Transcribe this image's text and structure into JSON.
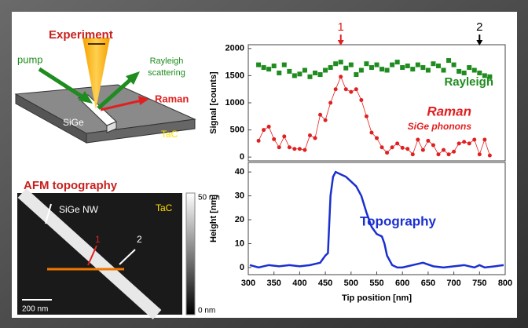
{
  "experiment": {
    "title": "Experiment",
    "pump": "pump",
    "rayleigh": [
      "Rayleigh",
      "scattering"
    ],
    "raman": "Raman",
    "sige": "SiGe",
    "tac": "TaC"
  },
  "afm": {
    "title": "AFM topography",
    "wire": "SiGe NW",
    "tac": "TaC",
    "point1": "1",
    "point2": "2",
    "scale_bar": "200 nm",
    "colorbar_max": "50 nm",
    "colorbar_min": "0 nm"
  },
  "chart_data": [
    {
      "type": "line",
      "ylabel": "Signal [counts]",
      "annotation": "SiGe phonons",
      "x": [
        320,
        330,
        340,
        350,
        360,
        370,
        380,
        390,
        400,
        410,
        420,
        430,
        440,
        450,
        460,
        470,
        480,
        490,
        500,
        510,
        520,
        530,
        540,
        550,
        560,
        570,
        580,
        590,
        600,
        610,
        620,
        630,
        640,
        650,
        660,
        670,
        680,
        690,
        700,
        710,
        720,
        730,
        740,
        750,
        760,
        770
      ],
      "series": [
        {
          "name": "Rayleigh",
          "color": "#1e8c1e",
          "marker": "square",
          "line": false,
          "values": [
            1700,
            1650,
            1620,
            1680,
            1550,
            1700,
            1580,
            1500,
            1530,
            1600,
            1480,
            1550,
            1520,
            1600,
            1650,
            1720,
            1750,
            1640,
            1700,
            1520,
            1600,
            1720,
            1650,
            1700,
            1620,
            1600,
            1700,
            1750,
            1650,
            1680,
            1620,
            1700,
            1650,
            1600,
            1720,
            1680,
            1600,
            1780,
            1700,
            1580,
            1550,
            1650,
            1600,
            1550,
            1500,
            1480
          ]
        },
        {
          "name": "Raman",
          "color": "#e02020",
          "marker": "circle",
          "line": true,
          "values": [
            300,
            500,
            560,
            330,
            180,
            380,
            180,
            150,
            150,
            130,
            400,
            350,
            780,
            680,
            1000,
            1250,
            1480,
            1250,
            1200,
            1250,
            1050,
            750,
            450,
            350,
            180,
            80,
            180,
            250,
            170,
            150,
            50,
            320,
            130,
            300,
            220,
            50,
            130,
            50,
            100,
            250,
            280,
            250,
            320,
            50,
            320,
            30
          ]
        }
      ],
      "markers": [
        {
          "label": "1",
          "x": 480,
          "color": "#e02020"
        },
        {
          "label": "2",
          "x": 750,
          "color": "#000000"
        }
      ],
      "xlim": [
        300,
        800
      ],
      "ylim": [
        -70,
        2070
      ],
      "yticks": [
        0,
        500,
        1000,
        1500,
        2000
      ]
    },
    {
      "type": "line",
      "ylabel": "Height [nm]",
      "xlabel": "Tip position [nm]",
      "x": [
        303,
        320,
        340,
        360,
        380,
        400,
        420,
        440,
        450,
        455,
        460,
        465,
        470,
        480,
        490,
        500,
        510,
        520,
        530,
        540,
        550,
        560,
        565,
        570,
        580,
        590,
        600,
        620,
        640,
        660,
        680,
        700,
        720,
        740,
        750,
        760,
        780,
        797
      ],
      "series": [
        {
          "name": "Topography",
          "color": "#1a2fd0",
          "marker": "none",
          "line": true,
          "values": [
            1,
            0,
            1,
            0.5,
            1,
            0.5,
            1,
            2,
            5,
            6,
            30,
            38,
            40,
            39,
            38,
            36,
            34,
            30,
            23,
            17,
            14,
            13,
            10,
            5,
            1,
            0,
            0,
            1,
            2,
            0.5,
            0,
            0.5,
            1,
            0,
            1,
            0,
            0.5,
            1
          ]
        }
      ],
      "xlim": [
        300,
        800
      ],
      "ylim": [
        -3,
        44
      ],
      "yticks": [
        0,
        10,
        20,
        30,
        40
      ],
      "xticks": [
        300,
        350,
        400,
        450,
        500,
        550,
        600,
        650,
        700,
        750,
        800
      ]
    }
  ]
}
